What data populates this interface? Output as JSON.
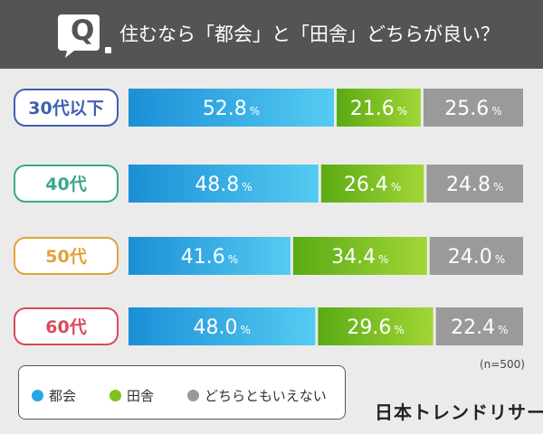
{
  "header": {
    "q_letter": "Q",
    "question": "住むなら「都会」と「田舎」どちらが良い？"
  },
  "colors": {
    "city": "#29a6e6",
    "countryside": "#7cc21e",
    "neither": "#9a9a9a",
    "age_border": [
      "#3f5fb0",
      "#3aa88a",
      "#e2a23a",
      "#d94a5a"
    ],
    "age_text": [
      "#3f5fb0",
      "#3aa88a",
      "#e2a23a",
      "#d94a5a"
    ]
  },
  "chart_data": {
    "type": "bar",
    "stacked": true,
    "orientation": "horizontal",
    "categories": [
      "30代以下",
      "40代",
      "50代",
      "60代"
    ],
    "series": [
      {
        "name": "都会",
        "values": [
          52.8,
          48.8,
          41.6,
          48.0
        ],
        "color": "#29a6e6"
      },
      {
        "name": "田舎",
        "values": [
          21.6,
          26.4,
          34.4,
          29.6
        ],
        "color": "#7cc21e"
      },
      {
        "name": "どちらともいえない",
        "values": [
          25.6,
          24.8,
          24.0,
          22.4
        ],
        "color": "#9a9a9a"
      }
    ],
    "value_labels": [
      [
        "52.8",
        "21.6",
        "25.6"
      ],
      [
        "48.8",
        "26.4",
        "24.8"
      ],
      [
        "41.6",
        "34.4",
        "24.0"
      ],
      [
        "48.0",
        "29.6",
        "22.4"
      ]
    ],
    "unit": "%",
    "xlim": [
      0,
      100
    ],
    "legend_position": "bottom-left"
  },
  "legend": {
    "items": [
      {
        "label": "都会",
        "icon": "blue-circle"
      },
      {
        "label": "田舎",
        "icon": "green-circle"
      },
      {
        "label": "どちらともいえない",
        "icon": "gray-circle"
      }
    ]
  },
  "footer": {
    "sample_size": "(n=500)",
    "brand": "日本トレンドリサーチ"
  }
}
